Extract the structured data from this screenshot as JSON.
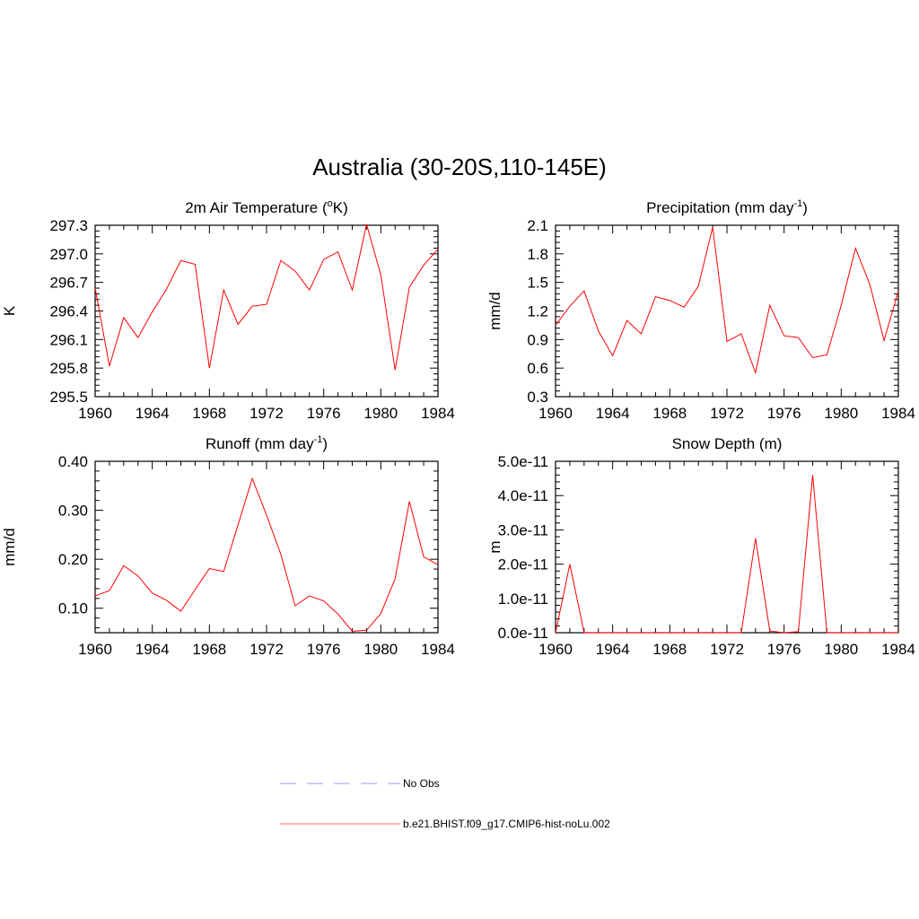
{
  "figure": {
    "title": "Australia (30-20S,110-145E)"
  },
  "legend": {
    "entries": [
      {
        "label": "No Obs",
        "style": "dashed",
        "color": "#9999ff"
      },
      {
        "label": "b.e21.BHIST.f09_g17.CMIP6-hist-noLu.002",
        "style": "solid",
        "color": "#ff6666"
      }
    ]
  },
  "series_color": "#ff0000",
  "chart_data": [
    {
      "type": "line",
      "title_main": "2m Air Temperature (",
      "title_sup": "o",
      "title_end": "K)",
      "ylabel": "K",
      "xlim": [
        1960,
        1984
      ],
      "ylim": [
        295.5,
        297.3
      ],
      "x_ticks": [
        "1960",
        "1964",
        "1968",
        "1972",
        "1976",
        "1980",
        "1984"
      ],
      "y_ticks": [
        "295.5",
        "295.8",
        "296.1",
        "296.4",
        "296.7",
        "297.0",
        "297.3"
      ],
      "x": [
        1960,
        1961,
        1962,
        1963,
        1964,
        1965,
        1966,
        1967,
        1968,
        1969,
        1970,
        1971,
        1972,
        1973,
        1974,
        1975,
        1976,
        1977,
        1978,
        1979,
        1980,
        1981,
        1982,
        1983,
        1984
      ],
      "series": [
        {
          "name": "b.e21.BHIST.f09_g17.CMIP6-hist-noLu.002",
          "values": [
            296.64,
            295.82,
            296.33,
            296.12,
            296.39,
            296.63,
            296.93,
            296.89,
            295.8,
            296.62,
            296.26,
            296.45,
            296.47,
            296.93,
            296.82,
            296.62,
            296.94,
            297.02,
            296.62,
            297.31,
            296.78,
            295.78,
            296.65,
            296.88,
            297.05
          ]
        }
      ]
    },
    {
      "type": "line",
      "title_main": "Precipitation (mm day",
      "title_sup": "-1",
      "title_end": ")",
      "ylabel": "mm/d",
      "xlim": [
        1960,
        1984
      ],
      "ylim": [
        0.3,
        2.1
      ],
      "x_ticks": [
        "1960",
        "1964",
        "1968",
        "1972",
        "1976",
        "1980",
        "1984"
      ],
      "y_ticks": [
        "0.3",
        "0.6",
        "0.9",
        "1.2",
        "1.5",
        "1.8",
        "2.1"
      ],
      "x": [
        1960,
        1961,
        1962,
        1963,
        1964,
        1965,
        1966,
        1967,
        1968,
        1969,
        1970,
        1971,
        1972,
        1973,
        1974,
        1975,
        1976,
        1977,
        1978,
        1979,
        1980,
        1981,
        1982,
        1983,
        1984
      ],
      "series": [
        {
          "name": "b.e21.BHIST.f09_g17.CMIP6-hist-noLu.002",
          "values": [
            1.05,
            1.25,
            1.41,
            0.99,
            0.73,
            1.1,
            0.96,
            1.35,
            1.31,
            1.24,
            1.46,
            2.08,
            0.88,
            0.96,
            0.55,
            1.26,
            0.94,
            0.92,
            0.71,
            0.74,
            1.26,
            1.86,
            1.48,
            0.89,
            1.41
          ]
        }
      ]
    },
    {
      "type": "line",
      "title_main": "Runoff (mm day",
      "title_sup": "-1",
      "title_end": ")",
      "ylabel": "mm/d",
      "xlim": [
        1960,
        1984
      ],
      "ylim": [
        0.05,
        0.4
      ],
      "x_ticks": [
        "1960",
        "1964",
        "1968",
        "1972",
        "1976",
        "1980",
        "1984"
      ],
      "y_ticks": [
        "0.10",
        "0.20",
        "0.30",
        "0.40"
      ],
      "y_tick_values": [
        0.1,
        0.2,
        0.3,
        0.4
      ],
      "x": [
        1960,
        1961,
        1962,
        1963,
        1964,
        1965,
        1966,
        1967,
        1968,
        1969,
        1970,
        1971,
        1972,
        1973,
        1974,
        1975,
        1976,
        1977,
        1978,
        1979,
        1980,
        1981,
        1982,
        1983,
        1984
      ],
      "series": [
        {
          "name": "b.e21.BHIST.f09_g17.CMIP6-hist-noLu.002",
          "values": [
            0.125,
            0.136,
            0.187,
            0.166,
            0.131,
            0.116,
            0.094,
            0.138,
            0.181,
            0.175,
            0.27,
            0.365,
            0.29,
            0.21,
            0.105,
            0.125,
            0.115,
            0.088,
            0.053,
            0.055,
            0.089,
            0.16,
            0.318,
            0.205,
            0.189
          ]
        }
      ]
    },
    {
      "type": "line",
      "title_main": "Snow Depth (m)",
      "title_sup": "",
      "title_end": "",
      "ylabel": "m",
      "xlim": [
        1960,
        1984
      ],
      "ylim": [
        0,
        5e-11
      ],
      "x_ticks": [
        "1960",
        "1964",
        "1968",
        "1972",
        "1976",
        "1980",
        "1984"
      ],
      "y_ticks": [
        "0.0e-11",
        "1.0e-11",
        "2.0e-11",
        "3.0e-11",
        "4.0e-11",
        "5.0e-11"
      ],
      "x": [
        1960,
        1961,
        1962,
        1963,
        1964,
        1965,
        1966,
        1967,
        1968,
        1969,
        1970,
        1971,
        1972,
        1973,
        1974,
        1975,
        1976,
        1977,
        1978,
        1979,
        1980,
        1981,
        1982,
        1983,
        1984
      ],
      "series": [
        {
          "name": "b.e21.BHIST.f09_g17.CMIP6-hist-noLu.002",
          "values": [
            0,
            2e-11,
            0,
            0,
            0,
            0,
            0,
            0,
            0,
            0,
            0,
            0,
            0,
            0,
            2.75e-11,
            5e-13,
            0,
            3e-13,
            4.6e-11,
            0,
            0,
            0,
            0,
            0,
            0
          ]
        }
      ]
    }
  ]
}
